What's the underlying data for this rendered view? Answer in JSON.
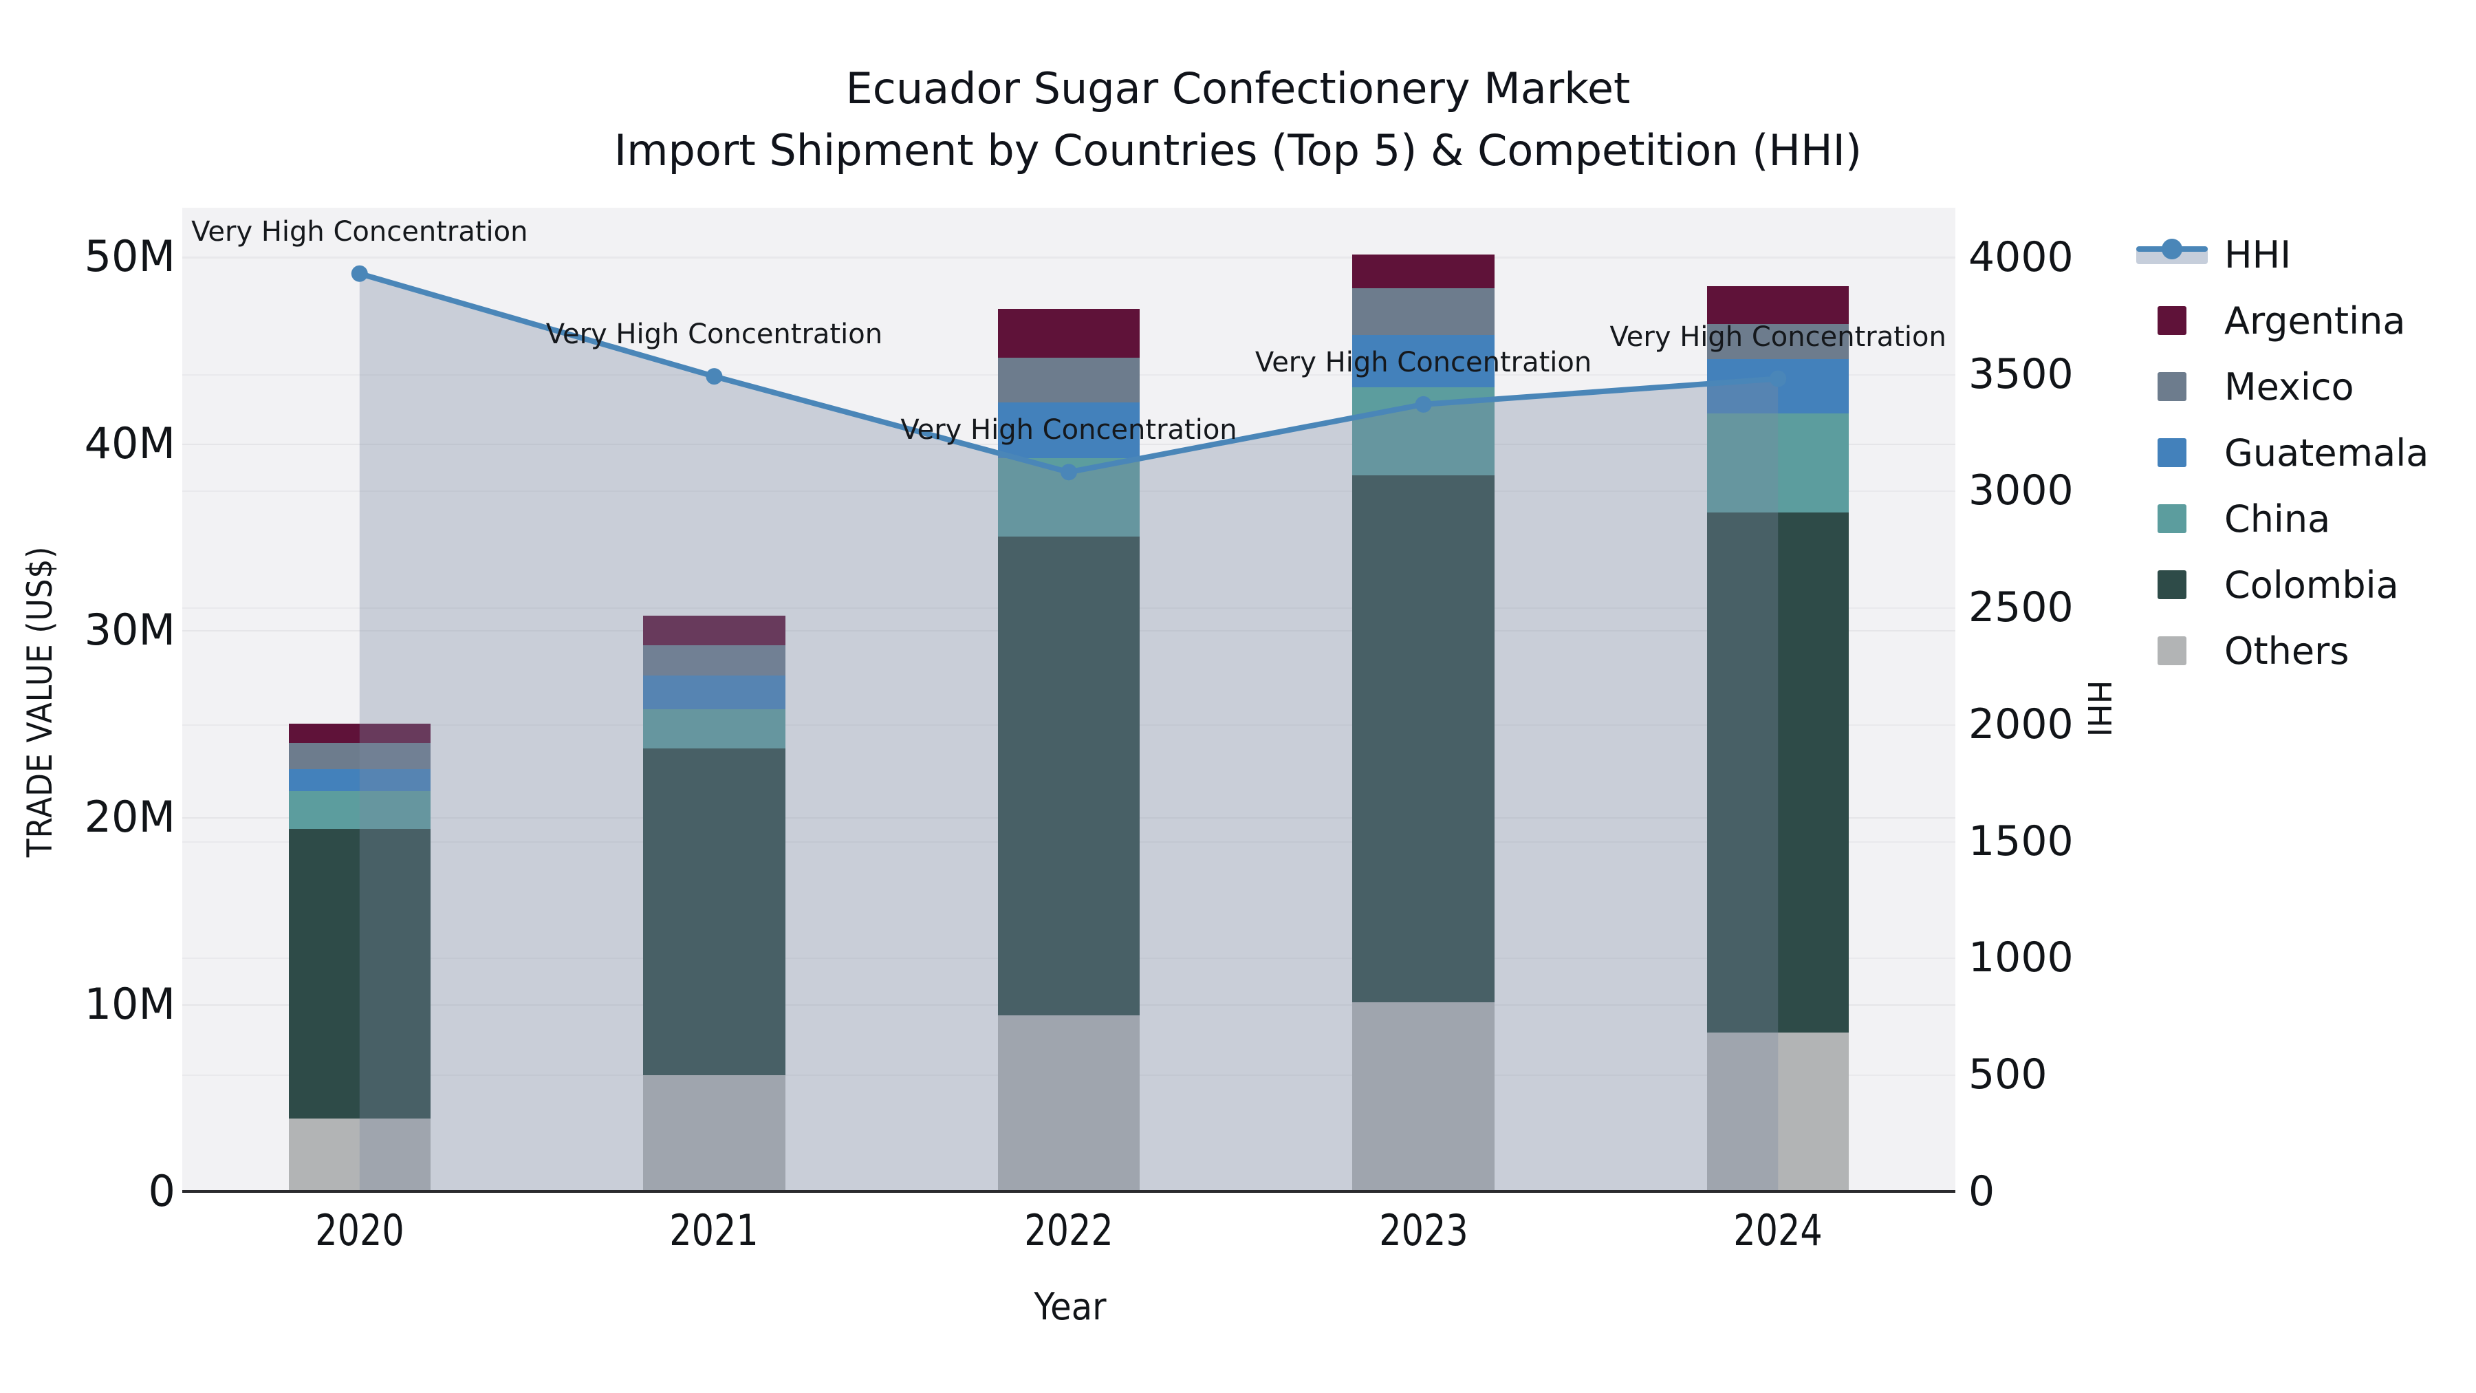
{
  "title": {
    "line1": "Ecuador Sugar Confectionery Market",
    "line2": "Import Shipment by Countries (Top 5) & Competition (HHI)"
  },
  "axes": {
    "left": {
      "title": "TRADE VALUE (US$)",
      "ticks": [
        {
          "value": 0,
          "label": "0"
        },
        {
          "value": 10,
          "label": "10M"
        },
        {
          "value": 20,
          "label": "20M"
        },
        {
          "value": 30,
          "label": "30M"
        },
        {
          "value": 40,
          "label": "40M"
        },
        {
          "value": 50,
          "label": "50M"
        }
      ],
      "max": 52.6
    },
    "right": {
      "title": "HHI",
      "ticks": [
        {
          "value": 0,
          "label": "0"
        },
        {
          "value": 500,
          "label": "500"
        },
        {
          "value": 1000,
          "label": "1000"
        },
        {
          "value": 1500,
          "label": "1500"
        },
        {
          "value": 2000,
          "label": "2000"
        },
        {
          "value": 2500,
          "label": "2500"
        },
        {
          "value": 3000,
          "label": "3000"
        },
        {
          "value": 3500,
          "label": "3500"
        },
        {
          "value": 4000,
          "label": "4000"
        }
      ],
      "max": 4212
    },
    "x": {
      "title": "Year",
      "categories": [
        "2020",
        "2021",
        "2022",
        "2023",
        "2024"
      ]
    }
  },
  "legend_order": [
    "HHI",
    "Argentina",
    "Mexico",
    "Guatemala",
    "China",
    "Colombia",
    "Others"
  ],
  "chart_data": {
    "type": "combo-stacked-bar-line",
    "categories": [
      "2020",
      "2021",
      "2022",
      "2023",
      "2024"
    ],
    "bar_value_unit": "million US$",
    "series": [
      {
        "name": "Others",
        "color": "#b2b4b5",
        "values": [
          3.9,
          6.2,
          9.4,
          10.1,
          8.5
        ]
      },
      {
        "name": "Colombia",
        "color": "#2e4b48",
        "values": [
          15.5,
          17.5,
          25.6,
          28.2,
          27.8
        ]
      },
      {
        "name": "China",
        "color": "#5c9d9e",
        "values": [
          2.0,
          2.1,
          4.2,
          4.7,
          5.3
        ]
      },
      {
        "name": "Guatemala",
        "color": "#4381bb",
        "values": [
          1.2,
          1.8,
          3.0,
          2.8,
          2.9
        ]
      },
      {
        "name": "Mexico",
        "color": "#6d7c8d",
        "values": [
          1.4,
          1.6,
          2.4,
          2.5,
          1.9
        ]
      },
      {
        "name": "Argentina",
        "color": "#5f1239",
        "values": [
          1.0,
          1.6,
          2.6,
          1.8,
          2.0
        ]
      }
    ],
    "line": {
      "name": "HHI",
      "color": "#4a86b8",
      "area_fill": "rgba(122,137,161,0.34)",
      "values": [
        3930,
        3490,
        3080,
        3370,
        3480
      ]
    },
    "annotations": [
      {
        "category": "2020",
        "text": "Very High Concentration"
      },
      {
        "category": "2021",
        "text": "Very High Concentration"
      },
      {
        "category": "2022",
        "text": "Very High Concentration"
      },
      {
        "category": "2023",
        "text": "Very High Concentration"
      },
      {
        "category": "2024",
        "text": "Very High Concentration"
      }
    ],
    "ylim_left": [
      0,
      52.6
    ],
    "ylim_right": [
      0,
      4212
    ],
    "grid": true,
    "legend_position": "top-right-outside"
  }
}
